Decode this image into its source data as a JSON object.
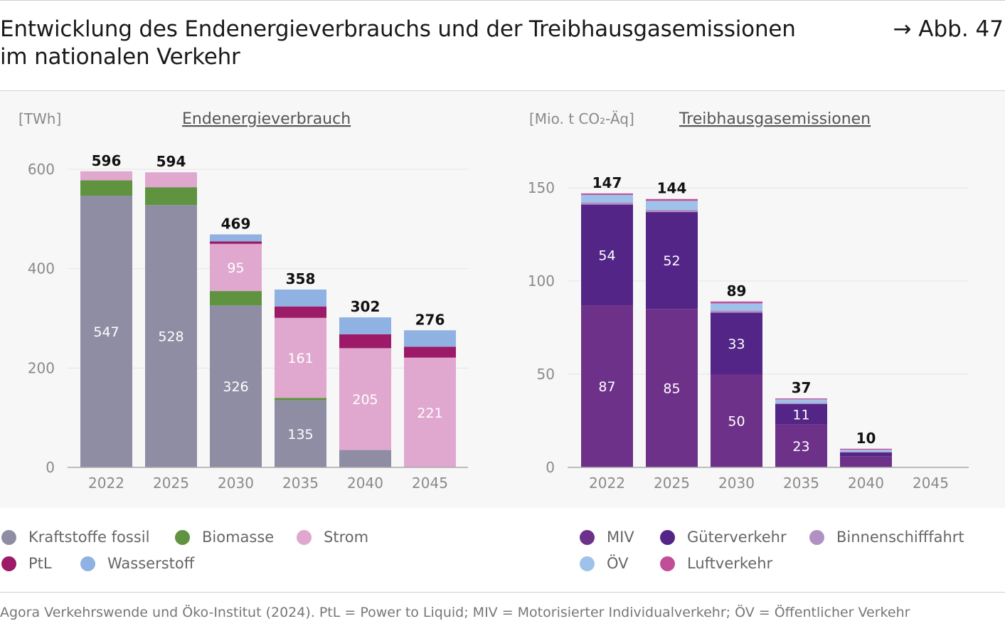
{
  "header": {
    "title_line1": "Entwicklung des Endenergieverbrauchs und der Treibhausgasemissionen",
    "title_line2": "im nationalen Verkehr",
    "figure_ref": "→ Abb. 47"
  },
  "source": "Agora Verkehrswende und Öko-Institut (2024). PtL = Power to Liquid; MIV = Motorisierter Individualverkehr; ÖV = Öffentlicher Verkehr",
  "colors": {
    "fossil": "#8f8da4",
    "biomasse": "#5f9340",
    "strom": "#e0a8ce",
    "ptl": "#9c1a67",
    "wasserstoff": "#8fb2e2",
    "miv": "#6d3189",
    "gueter": "#532587",
    "binnen": "#b190c4",
    "oev": "#9ec2ea",
    "luft": "#c14f98",
    "axis": "#aaaaaa",
    "grid": "#e6e6e6",
    "tick_text": "#8a8a8a"
  },
  "chart_data": [
    {
      "type": "bar",
      "stacked": true,
      "title": "Endenergieverbrauch",
      "ylabel": "[TWh]",
      "ylim": [
        0,
        600
      ],
      "yticks": [
        0,
        200,
        400,
        600
      ],
      "categories": [
        "2022",
        "2025",
        "2030",
        "2035",
        "2040",
        "2045"
      ],
      "totals": [
        596,
        594,
        469,
        358,
        302,
        276
      ],
      "series": [
        {
          "name": "Kraftstoffe fossil",
          "color_key": "fossil",
          "values": [
            547,
            528,
            326,
            135,
            35,
            0
          ]
        },
        {
          "name": "Biomasse",
          "color_key": "biomasse",
          "values": [
            31,
            36,
            29,
            5,
            0,
            0
          ]
        },
        {
          "name": "Strom",
          "color_key": "strom",
          "values": [
            18,
            30,
            95,
            161,
            205,
            221
          ]
        },
        {
          "name": "PtL",
          "color_key": "ptl",
          "values": [
            0,
            0,
            5,
            23,
            28,
            22
          ]
        },
        {
          "name": "Wasserstoff",
          "color_key": "wasserstoff",
          "values": [
            0,
            0,
            14,
            34,
            34,
            33
          ]
        }
      ],
      "segment_labels": [
        {
          "series": "Kraftstoffe fossil",
          "labels": [
            "547",
            "528",
            "326",
            "135",
            "",
            ""
          ]
        },
        {
          "series": "Strom",
          "labels": [
            "",
            "",
            "95",
            "161",
            "205",
            "221"
          ]
        }
      ]
    },
    {
      "type": "bar",
      "stacked": true,
      "title": "Treibhausgasemissionen",
      "ylabel": "[Mio. t CO₂-Äq]",
      "ylim": [
        0,
        150
      ],
      "yticks": [
        0,
        50,
        100,
        150
      ],
      "categories": [
        "2022",
        "2025",
        "2030",
        "2035",
        "2040",
        "2045"
      ],
      "totals": [
        147,
        144,
        89,
        37,
        10,
        null
      ],
      "series": [
        {
          "name": "MIV",
          "color_key": "miv",
          "values": [
            87,
            85,
            50,
            23,
            6,
            0
          ]
        },
        {
          "name": "Güterverkehr",
          "color_key": "gueter",
          "values": [
            54,
            52,
            33,
            11,
            2,
            0
          ]
        },
        {
          "name": "Binnenschifffahrt",
          "color_key": "binnen",
          "values": [
            1.2,
            1.2,
            1.2,
            0.7,
            0.5,
            0
          ]
        },
        {
          "name": "ÖV",
          "color_key": "oev",
          "values": [
            4,
            4.8,
            3.8,
            1.8,
            1.0,
            0
          ]
        },
        {
          "name": "Luftverkehr",
          "color_key": "luft",
          "values": [
            0.8,
            1.0,
            1.0,
            0.5,
            0.5,
            0
          ]
        }
      ],
      "segment_labels": [
        {
          "series": "MIV",
          "labels": [
            "87",
            "85",
            "50",
            "23",
            "",
            ""
          ]
        },
        {
          "series": "Güterverkehr",
          "labels": [
            "54",
            "52",
            "33",
            "11",
            "",
            ""
          ]
        }
      ]
    }
  ],
  "legend_left": [
    {
      "label": "Kraftstoffe fossil",
      "color_key": "fossil"
    },
    {
      "label": "Biomasse",
      "color_key": "biomasse"
    },
    {
      "label": "Strom",
      "color_key": "strom"
    },
    {
      "label": "PtL",
      "color_key": "ptl"
    },
    {
      "label": "Wasserstoff",
      "color_key": "wasserstoff"
    }
  ],
  "legend_right": [
    {
      "label": "MIV",
      "color_key": "miv"
    },
    {
      "label": "Güterverkehr",
      "color_key": "gueter"
    },
    {
      "label": "Binnenschifffahrt",
      "color_key": "binnen"
    },
    {
      "label": "ÖV",
      "color_key": "oev"
    },
    {
      "label": "Luftverkehr",
      "color_key": "luft"
    }
  ]
}
